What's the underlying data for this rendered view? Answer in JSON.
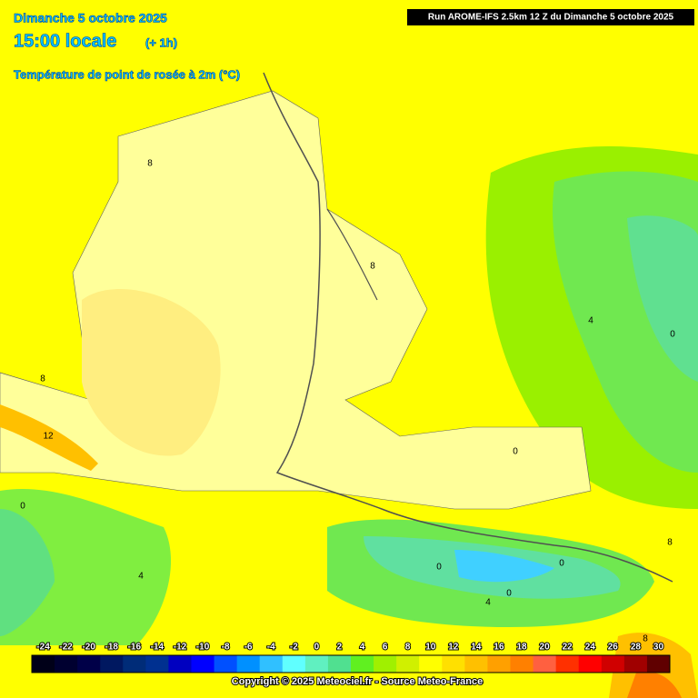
{
  "header": {
    "date": "Dimanche 5 octobre 2025",
    "time": "15:00 locale",
    "offset": "(+ 1h)",
    "parameter": "Température de point de rosée à 2m (°C)"
  },
  "run": "Run AROME-IFS 2.5km 12 Z du Dimanche 5 octobre 2025",
  "contour_labels": [
    8,
    8,
    12,
    8,
    4,
    0,
    0,
    0,
    4,
    0,
    0,
    0,
    4,
    8,
    8
  ],
  "scale": {
    "ticks": [
      -24,
      -22,
      -20,
      -18,
      -16,
      -14,
      -12,
      -10,
      -8,
      -6,
      -4,
      -2,
      0,
      2,
      4,
      6,
      8,
      10,
      12,
      14,
      16,
      18,
      20,
      22,
      24,
      26,
      28,
      30
    ],
    "colors": [
      "#000018",
      "#000030",
      "#000048",
      "#001860",
      "#002c78",
      "#003090",
      "#0000c0",
      "#0000ff",
      "#0050ff",
      "#0090ff",
      "#30c0ff",
      "#60ffff",
      "#60f0c0",
      "#50e090",
      "#60f020",
      "#a0f000",
      "#d0f000",
      "#ffff00",
      "#ffe000",
      "#ffc000",
      "#ffa000",
      "#ff8000",
      "#ff6040",
      "#ff3000",
      "#ff0000",
      "#d00000",
      "#a00000",
      "#600000"
    ]
  },
  "copyright": "Copyright © 2025 Meteociel.fr - Source Meteo-France"
}
